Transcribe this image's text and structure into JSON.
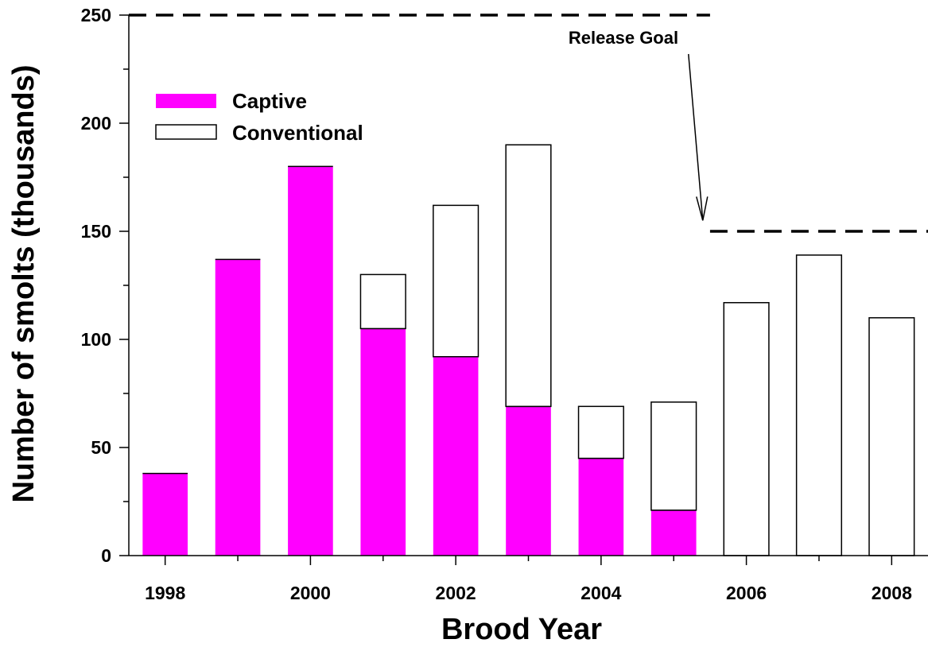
{
  "chart_data": {
    "type": "bar",
    "stacked": true,
    "title": "",
    "xlabel": "Brood Year",
    "ylabel": "Number of smolts (thousands)",
    "xlim": [
      1997.5,
      2008.5
    ],
    "ylim": [
      0,
      250
    ],
    "x_ticks": [
      1998,
      2000,
      2002,
      2004,
      2006,
      2008
    ],
    "y_ticks": [
      0,
      50,
      100,
      150,
      200,
      250
    ],
    "categories": [
      1998,
      1999,
      2000,
      2001,
      2002,
      2003,
      2004,
      2005,
      2006,
      2007,
      2008
    ],
    "series": [
      {
        "name": "Captive",
        "color": "#ff00ff",
        "values": [
          38,
          137,
          180,
          105,
          92,
          69,
          45,
          21,
          0,
          0,
          0
        ]
      },
      {
        "name": "Conventional",
        "color": "#ffffff",
        "values": [
          0,
          0,
          0,
          25,
          70,
          121,
          24,
          50,
          117,
          139,
          110
        ]
      }
    ],
    "legend_position": "top-left",
    "grid": false,
    "reference_lines": [
      {
        "value": 250,
        "x_start": 1997.5,
        "x_end": 2005.5
      },
      {
        "value": 150,
        "x_start": 2005.5,
        "x_end": 2008.5
      }
    ],
    "annotation": {
      "text": "Release Goal",
      "arrow_from": [
        2005.4,
        232
      ],
      "arrow_to": [
        2005.4,
        155
      ]
    }
  }
}
